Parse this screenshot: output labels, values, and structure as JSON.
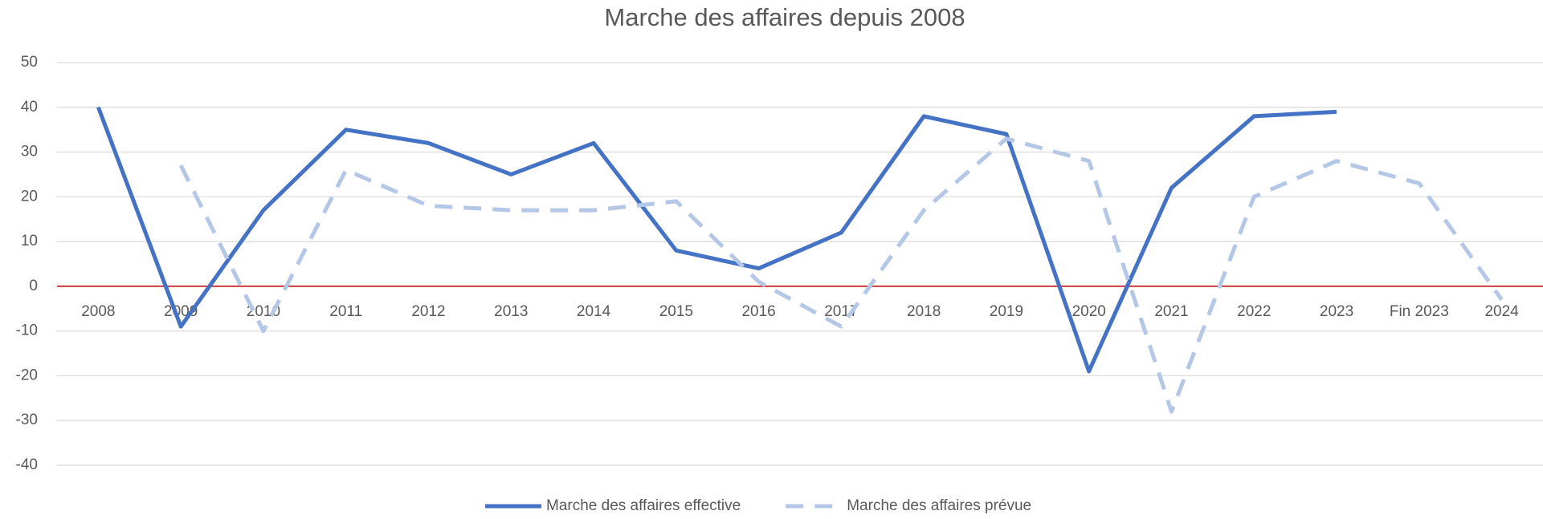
{
  "chart_data": {
    "type": "line",
    "title": "Marche des affaires depuis 2008",
    "categories": [
      "2008",
      "2009",
      "2010",
      "2011",
      "2012",
      "2013",
      "2014",
      "2015",
      "2016",
      "2017",
      "2018",
      "2019",
      "2020",
      "2021",
      "2022",
      "2023",
      "Fin 2023",
      "2024"
    ],
    "series": [
      {
        "name": "Marche des affaires effective",
        "color": "#4472c4",
        "dash": false,
        "values": [
          40,
          -9,
          17,
          35,
          32,
          25,
          32,
          8,
          4,
          12,
          38,
          34,
          -19,
          22,
          38,
          39,
          null,
          null
        ]
      },
      {
        "name": "Marche des affaires prévue",
        "color": "#b4c7e7",
        "dash": true,
        "values": [
          null,
          27,
          -10,
          26,
          18,
          17,
          17,
          19,
          1,
          -9,
          17,
          33,
          28,
          -28,
          20,
          28,
          23,
          -3
        ]
      }
    ],
    "ylim": [
      -40,
      50
    ],
    "yticks": [
      -40,
      -30,
      -20,
      -10,
      0,
      10,
      20,
      30,
      40,
      50
    ],
    "grid": true,
    "zero_line_color": "#c00000",
    "legend": "bottom"
  }
}
